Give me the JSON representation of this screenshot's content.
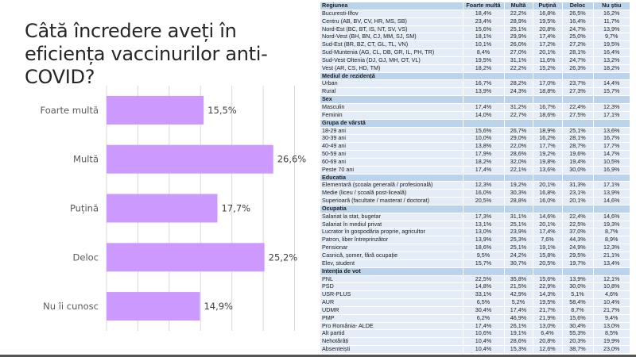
{
  "slide": {
    "title": "Câtă încredere aveți în eficiența vaccinurilor anti-COVID?"
  },
  "chart_data": {
    "type": "bar",
    "orientation": "horizontal",
    "title": "Câtă încredere aveți în eficiența vaccinurilor anti-COVID?",
    "categories": [
      "Foarte multă",
      "Multă",
      "Puțină",
      "Deloc",
      "Nu îi cunosc"
    ],
    "values": [
      15.5,
      26.6,
      17.7,
      25.2,
      14.9
    ],
    "value_labels": [
      "15,5%",
      "26,6%",
      "17,7%",
      "25,2%",
      "14,9%"
    ],
    "xlim": [
      0,
      30
    ],
    "grid_step": 5,
    "grid": true,
    "xlabel": "",
    "ylabel": "",
    "bar_color": "#cc99ff"
  },
  "table": {
    "headers": [
      "Regiunea",
      "Foarte multă",
      "Multă",
      "Puțină",
      "Deloc",
      "Nu știu"
    ],
    "groups": [
      {
        "title": null,
        "rows": [
          {
            "label": "Bucuresti-Ilfov",
            "values": [
              "18,4%",
              "22,2%",
              "16,8%",
              "26,5%",
              "16,2%"
            ]
          },
          {
            "label": "Centru (AB, BV, CV, HR, MS, SB)",
            "values": [
              "23,4%",
              "28,9%",
              "19,5%",
              "16,4%",
              "11,7%"
            ]
          },
          {
            "label": "Nord-Est (BC, BT, IS, NT, SV, VS)",
            "values": [
              "15,6%",
              "25,1%",
              "20,8%",
              "24,7%",
              "13,9%"
            ]
          },
          {
            "label": "Nord-Vest (BH, BN, CJ, MM, SJ, SM)",
            "values": [
              "18,1%",
              "29,9%",
              "17,4%",
              "25,0%",
              "9,7%"
            ]
          },
          {
            "label": "Sud-Est (BR, BZ, CT, GL, TL, VN)",
            "values": [
              "10,1%",
              "26,0%",
              "17,2%",
              "27,2%",
              "19,5%"
            ]
          },
          {
            "label": "Sud-Muntenia (AG, CL, DB, GR, IL, PH, TR)",
            "values": [
              "8,4%",
              "27,0%",
              "20,1%",
              "28,1%",
              "16,4%"
            ]
          },
          {
            "label": "Sud-Vest Oltenia (DJ, GJ, MH, OT, VL)",
            "values": [
              "19,5%",
              "31,1%",
              "11,6%",
              "24,7%",
              "13,2%"
            ]
          },
          {
            "label": "Vest (AR, CS, HD, TM)",
            "values": [
              "18,2%",
              "22,2%",
              "15,2%",
              "26,3%",
              "18,2%"
            ]
          }
        ]
      },
      {
        "title": "Mediul de rezidență",
        "rows": [
          {
            "label": "Urban",
            "values": [
              "16,7%",
              "28,2%",
              "17,0%",
              "23,7%",
              "14,4%"
            ]
          },
          {
            "label": "Rural",
            "values": [
              "13,9%",
              "24,3%",
              "18,8%",
              "27,3%",
              "15,7%"
            ]
          }
        ]
      },
      {
        "title": "Sex",
        "rows": [
          {
            "label": "Masculin",
            "values": [
              "17,4%",
              "31,2%",
              "16,7%",
              "22,4%",
              "12,3%"
            ]
          },
          {
            "label": "Feminin",
            "values": [
              "14,0%",
              "22,7%",
              "18,6%",
              "27,5%",
              "17,1%"
            ]
          }
        ]
      },
      {
        "title": "Grupa de vârstă",
        "rows": [
          {
            "label": "18-29 ani",
            "values": [
              "15,6%",
              "26,7%",
              "18,9%",
              "25,1%",
              "13,6%"
            ]
          },
          {
            "label": "30-39 ani",
            "values": [
              "10,0%",
              "29,0%",
              "16,2%",
              "28,1%",
              "16,7%"
            ]
          },
          {
            "label": "40-49 ani",
            "values": [
              "13,8%",
              "22,0%",
              "17,7%",
              "28,7%",
              "17,7%"
            ]
          },
          {
            "label": "50-59 ani",
            "values": [
              "17,9%",
              "28,6%",
              "19,2%",
              "19,6%",
              "14,7%"
            ]
          },
          {
            "label": "60-69 ani",
            "values": [
              "18,2%",
              "32,0%",
              "19,8%",
              "19,4%",
              "10,5%"
            ]
          },
          {
            "label": "Peste 70 ani",
            "values": [
              "17,4%",
              "22,1%",
              "13,6%",
              "30,0%",
              "16,9%"
            ]
          }
        ]
      },
      {
        "title": "Educatia",
        "rows": [
          {
            "label": "Elementară (școala generală / profesională)",
            "values": [
              "12,3%",
              "19,2%",
              "20,1%",
              "31,3%",
              "17,1%"
            ]
          },
          {
            "label": "Medie (liceu / școală post-liceală)",
            "values": [
              "16,0%",
              "30,3%",
              "16,8%",
              "23,1%",
              "13,9%"
            ]
          },
          {
            "label": "Superioară (facultate / masterat / doctorat)",
            "values": [
              "20,5%",
              "28,8%",
              "16,0%",
              "20,1%",
              "14,6%"
            ]
          }
        ]
      },
      {
        "title": "Ocupatia",
        "rows": [
          {
            "label": "Salariat la stat, bugetar",
            "values": [
              "17,3%",
              "31,1%",
              "14,6%",
              "22,4%",
              "14,6%"
            ]
          },
          {
            "label": "Salariat în mediul privat",
            "values": [
              "13,1%",
              "25,1%",
              "20,1%",
              "22,5%",
              "19,3%"
            ]
          },
          {
            "label": "Lucrator în gospodăria proprie, agricultor",
            "values": [
              "13,0%",
              "23,9%",
              "17,4%",
              "37,0%",
              "8,7%"
            ]
          },
          {
            "label": "Patron, liber întreprinzător",
            "values": [
              "13,9%",
              "25,3%",
              "7,6%",
              "44,3%",
              "8,9%"
            ]
          },
          {
            "label": "Pensionar",
            "values": [
              "18,6%",
              "25,1%",
              "19,1%",
              "24,9%",
              "12,3%"
            ]
          },
          {
            "label": "Casnică, șomer, fără ocupație",
            "values": [
              "9,5%",
              "24,2%",
              "15,8%",
              "29,5%",
              "21,1%"
            ]
          },
          {
            "label": "Elev, student",
            "values": [
              "15,7%",
              "30,7%",
              "20,5%",
              "19,7%",
              "13,4%"
            ]
          }
        ]
      },
      {
        "title": "Intenția de vot",
        "rows": [
          {
            "label": "PNL",
            "values": [
              "22,5%",
              "35,8%",
              "15,6%",
              "13,9%",
              "12,1%"
            ]
          },
          {
            "label": "PSD",
            "values": [
              "14,8%",
              "21,5%",
              "22,9%",
              "30,0%",
              "10,8%"
            ]
          },
          {
            "label": "USR-PLUS",
            "values": [
              "33,1%",
              "42,9%",
              "14,3%",
              "5,1%",
              "4,6%"
            ]
          },
          {
            "label": "AUR",
            "values": [
              "6,5%",
              "5,2%",
              "19,5%",
              "58,4%",
              "10,4%"
            ]
          },
          {
            "label": "UDMR",
            "values": [
              "30,4%",
              "17,4%",
              "21,7%",
              "8,7%",
              "21,7%"
            ]
          },
          {
            "label": "PMP",
            "values": [
              "6,2%",
              "46,9%",
              "21,9%",
              "15,6%",
              "9,4%"
            ]
          },
          {
            "label": "Pro România- ALDE",
            "values": [
              "17,4%",
              "26,1%",
              "13,0%",
              "30,4%",
              "13,0%"
            ]
          },
          {
            "label": "Alt partid",
            "values": [
              "10,6%",
              "19,1%",
              "6,4%",
              "55,3%",
              "8,5%"
            ]
          },
          {
            "label": "Nehotărâți",
            "values": [
              "10,4%",
              "28,6%",
              "20,8%",
              "20,3%",
              "19,9%"
            ]
          },
          {
            "label": "Absenteiști",
            "values": [
              "10,4%",
              "15,3%",
              "12,6%",
              "38,7%",
              "23,0%"
            ]
          }
        ]
      }
    ]
  }
}
